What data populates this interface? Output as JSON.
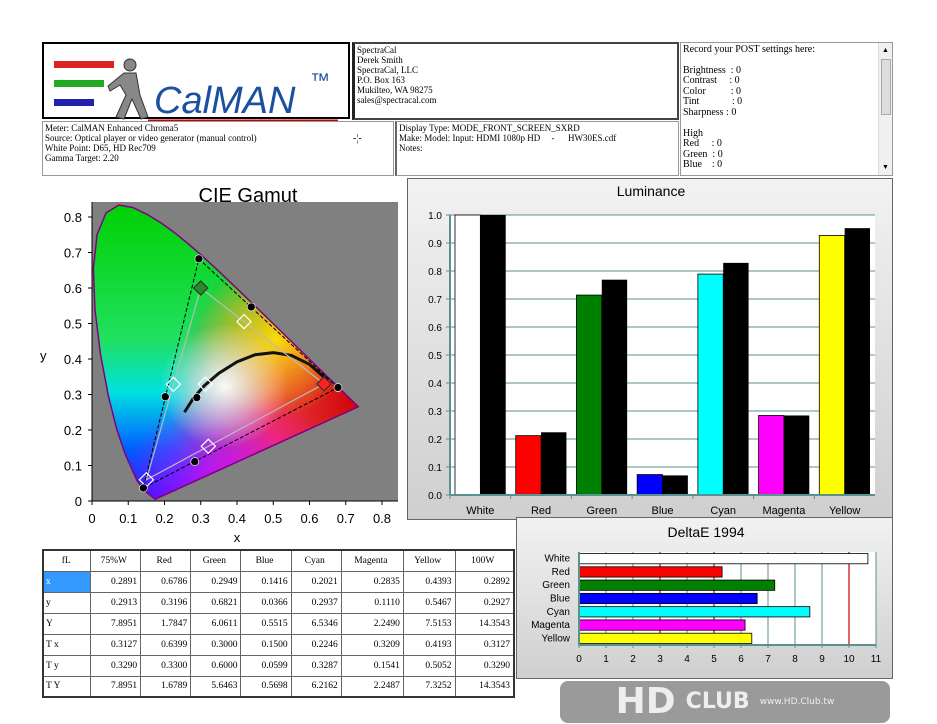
{
  "logo": {
    "text": "CalMAN",
    "tm": "™"
  },
  "contact": {
    "lines": [
      "SpectraCal",
      "Derek Smith",
      "SpectraCal, LLC",
      "P.O. Box 163",
      "Mukilteo, WA 98275",
      "sales@spectracal.com"
    ]
  },
  "post": {
    "lines": [
      "Record your POST settings here:",
      "",
      "Brightness  : 0",
      "Contrast     : 0",
      "Color          : 0",
      "Tint             : 0",
      "Sharpness : 0",
      "",
      "High",
      "Red     : 0",
      "Green  : 0",
      "Blue    : 0"
    ]
  },
  "meter": {
    "lines": [
      "Meter: CalMAN Enhanced Chroma5",
      "Source: Optical player or video generator (manual control)",
      "White Point: D65, HD Rec709",
      "Gamma Target: 2.20"
    ]
  },
  "display": {
    "lines": [
      "Display Type: MODE_FRONT_SCREEN_SXRD",
      "Make: Model: Input: HDMI 1080p HD     -      HW30ES.cdf",
      "Notes:"
    ]
  },
  "table": {
    "headers": [
      "fL",
      "75%W",
      "Red",
      "Green",
      "Blue",
      "Cyan",
      "Magenta",
      "Yellow",
      "100W"
    ],
    "rows": [
      [
        "x",
        "0.2891",
        "0.6786",
        "0.2949",
        "0.1416",
        "0.2021",
        "0.2835",
        "0.4393",
        "0.2892"
      ],
      [
        "y",
        "0.2913",
        "0.3196",
        "0.6821",
        "0.0366",
        "0.2937",
        "0.1110",
        "0.5467",
        "0.2927"
      ],
      [
        "Y",
        "7.8951",
        "1.7847",
        "6.0611",
        "0.5515",
        "6.5346",
        "2.2490",
        "7.5153",
        "14.3543"
      ],
      [
        "T x",
        "0.3127",
        "0.6399",
        "0.3000",
        "0.1500",
        "0.2246",
        "0.3209",
        "0.4193",
        "0.3127"
      ],
      [
        "T y",
        "0.3290",
        "0.3300",
        "0.6000",
        "0.0599",
        "0.3287",
        "0.1541",
        "0.5052",
        "0.3290"
      ],
      [
        "T Y",
        "7.8951",
        "1.6789",
        "5.6463",
        "0.5698",
        "6.2162",
        "2.2487",
        "7.3252",
        "14.3543"
      ]
    ]
  },
  "watermark": {
    "line1": "HD",
    "line2": "CLUB",
    "line3": "www.HD.Club.tw"
  },
  "chart_data": [
    {
      "type": "scatter",
      "title": "CIE Gamut",
      "xlabel": "x",
      "ylabel": "y",
      "xlim": [
        0,
        0.8
      ],
      "ylim": [
        0,
        0.8
      ],
      "xticks": [
        "0",
        "0.1",
        "0.2",
        "0.3",
        "0.4",
        "0.5",
        "0.6",
        "0.7",
        "0.8"
      ],
      "yticks": [
        "0",
        "0.1",
        "0.2",
        "0.3",
        "0.4",
        "0.5",
        "0.6",
        "0.7",
        "0.8"
      ],
      "measured": [
        [
          0.2891,
          0.2913
        ],
        [
          0.6786,
          0.3196
        ],
        [
          0.2949,
          0.6821
        ],
        [
          0.1416,
          0.0366
        ],
        [
          0.2021,
          0.2937
        ],
        [
          0.2835,
          0.111
        ],
        [
          0.4393,
          0.5467
        ]
      ],
      "target": [
        [
          0.3127,
          0.329
        ],
        [
          0.6399,
          0.33
        ],
        [
          0.3,
          0.6
        ],
        [
          0.15,
          0.0599
        ],
        [
          0.2246,
          0.3287
        ],
        [
          0.3209,
          0.1541
        ],
        [
          0.4193,
          0.5052
        ]
      ],
      "background": "#808080"
    },
    {
      "type": "bar",
      "title": "Luminance",
      "categories": [
        "White",
        "Red",
        "Green",
        "Blue",
        "Cyan",
        "Magenta",
        "Yellow"
      ],
      "colors": [
        "#ffffff",
        "#ff0000",
        "#008000",
        "#0000ff",
        "#00ffff",
        "#ff00ff",
        "#ffff00"
      ],
      "series": [
        {
          "values": [
            1.0,
            0.212,
            0.714,
            0.073,
            0.789,
            0.284,
            0.927
          ]
        },
        {
          "values": [
            1.0,
            0.224,
            0.769,
            0.07,
            0.829,
            0.284,
            0.953
          ],
          "color": "#000000"
        }
      ],
      "ylim": [
        0,
        1.0
      ],
      "yticks": [
        "0.0",
        "0.1",
        "0.2",
        "0.3",
        "0.4",
        "0.5",
        "0.6",
        "0.7",
        "0.8",
        "0.9",
        "1.0"
      ],
      "grid": true
    },
    {
      "type": "bar",
      "orientation": "horizontal",
      "title": "DeltaE 1994",
      "categories": [
        "White",
        "Red",
        "Green",
        "Blue",
        "Cyan",
        "Magenta",
        "Yellow"
      ],
      "colors": [
        "#ffffff",
        "#ff0000",
        "#008000",
        "#0000ff",
        "#00ffff",
        "#ff00ff",
        "#ffff00"
      ],
      "values": [
        10.7,
        5.3,
        7.25,
        6.6,
        8.55,
        6.15,
        6.4
      ],
      "xlim": [
        0,
        11
      ],
      "xticks": [
        "0",
        "1",
        "2",
        "3",
        "4",
        "5",
        "6",
        "7",
        "8",
        "9",
        "10",
        "11"
      ],
      "thresholds": [
        3,
        5,
        10
      ],
      "threshold_color": "#cc0000",
      "grid": true
    }
  ]
}
